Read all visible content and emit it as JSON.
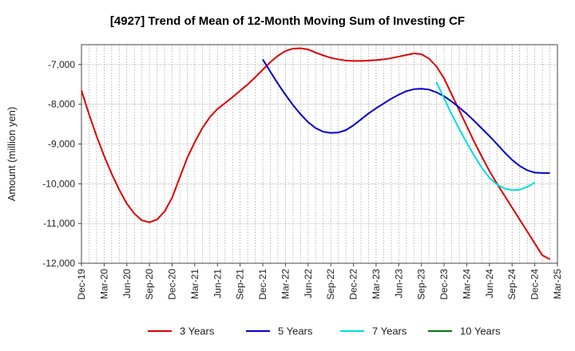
{
  "chart_data": {
    "type": "line",
    "title": "[4927]  Trend of Mean of 12-Month Moving Sum of Investing CF",
    "xlabel": "",
    "ylabel": "Amount (million yen)",
    "ylim": [
      -12000,
      -6500
    ],
    "yticks": [
      -7000,
      -8000,
      -9000,
      -10000,
      -11000,
      -12000
    ],
    "ytick_labels": [
      "-7,000",
      "-8,000",
      "-9,000",
      "-10,000",
      "-11,000",
      "-12,000"
    ],
    "x_start": "2019-12",
    "x_end": "2025-03",
    "xticks": [
      "Dec-19",
      "Mar-20",
      "Jun-20",
      "Sep-20",
      "Dec-20",
      "Mar-21",
      "Jun-21",
      "Sep-21",
      "Dec-21",
      "Mar-22",
      "Jun-22",
      "Sep-22",
      "Dec-22",
      "Mar-23",
      "Jun-23",
      "Sep-23",
      "Dec-23",
      "Mar-24",
      "Jun-24",
      "Sep-24",
      "Dec-24",
      "Mar-25"
    ],
    "grid": true,
    "legend_position": "bottom",
    "series": [
      {
        "name": "3 Years",
        "color": "#dd0000",
        "start": "2019-12",
        "values": [
          -7650,
          -8250,
          -8800,
          -9300,
          -9750,
          -10150,
          -10500,
          -10750,
          -10920,
          -10970,
          -10900,
          -10700,
          -10350,
          -9850,
          -9350,
          -8950,
          -8600,
          -8320,
          -8120,
          -7970,
          -7820,
          -7660,
          -7500,
          -7320,
          -7130,
          -6940,
          -6780,
          -6660,
          -6600,
          -6590,
          -6620,
          -6700,
          -6770,
          -6830,
          -6870,
          -6900,
          -6910,
          -6910,
          -6900,
          -6890,
          -6870,
          -6840,
          -6800,
          -6760,
          -6720,
          -6740,
          -6850,
          -7050,
          -7350,
          -7750,
          -8150,
          -8550,
          -8950,
          -9320,
          -9680,
          -10000,
          -10300,
          -10600,
          -10900,
          -11200,
          -11500,
          -11800,
          -11900
        ]
      },
      {
        "name": "5 Years",
        "color": "#0000cc",
        "start": "2021-12",
        "values": [
          -6870,
          -7180,
          -7480,
          -7760,
          -8020,
          -8250,
          -8450,
          -8600,
          -8690,
          -8720,
          -8710,
          -8650,
          -8530,
          -8380,
          -8230,
          -8100,
          -7980,
          -7860,
          -7760,
          -7670,
          -7620,
          -7610,
          -7630,
          -7700,
          -7800,
          -7930,
          -8080,
          -8240,
          -8420,
          -8610,
          -8800,
          -9000,
          -9210,
          -9400,
          -9550,
          -9660,
          -9720,
          -9730,
          -9730
        ]
      },
      {
        "name": "7 Years",
        "color": "#00dddd",
        "start": "2023-11",
        "values": [
          -7450,
          -7850,
          -8250,
          -8620,
          -8970,
          -9300,
          -9600,
          -9850,
          -10020,
          -10120,
          -10160,
          -10150,
          -10080,
          -9970
        ]
      },
      {
        "name": "10 Years",
        "color": "#007700",
        "start": "2019-12",
        "values": []
      }
    ]
  }
}
